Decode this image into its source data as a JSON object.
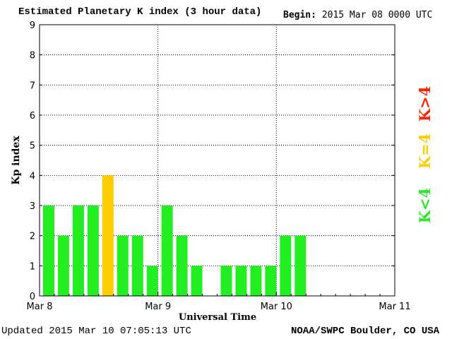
{
  "header": {
    "title": "Estimated Planetary K index (3 hour data)",
    "begin_label": "Begin:",
    "begin_value": "2015 Mar 08 0000 UTC"
  },
  "footer": {
    "updated": "Updated 2015 Mar 10 07:05:13 UTC",
    "credit": "NOAA/SWPC Boulder, CO USA"
  },
  "legend": {
    "low": "K<4",
    "mid": "K=4",
    "high": "K>4"
  },
  "colors": {
    "low": "#22ee22",
    "mid": "#ffcc00",
    "high": "#ff2200"
  },
  "chart_data": {
    "type": "bar",
    "xlabel": "Universal Time",
    "ylabel": "Kp index",
    "ylim": [
      0,
      9
    ],
    "yticks": [
      0,
      1,
      2,
      3,
      4,
      5,
      6,
      7,
      8,
      9
    ],
    "x_tick_labels": [
      "Mar 8",
      "Mar 9",
      "Mar 10",
      "Mar 11"
    ],
    "grid": true,
    "interval_hours": 3,
    "values": [
      3,
      2,
      3,
      3,
      4,
      2,
      2,
      1,
      3,
      2,
      1,
      null,
      1,
      1,
      1,
      1,
      2,
      2
    ]
  }
}
